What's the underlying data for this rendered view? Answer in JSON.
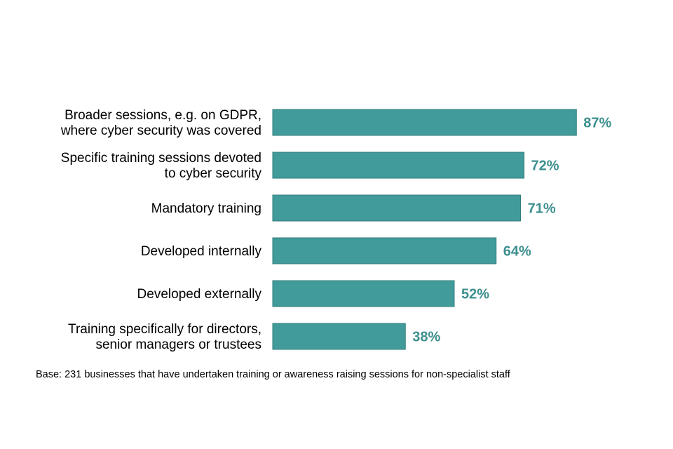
{
  "chart_data": {
    "type": "bar",
    "orientation": "horizontal",
    "categories": [
      [
        "Broader sessions, e.g. on GDPR,",
        "where cyber security was covered"
      ],
      [
        "Specific training sessions devoted",
        "to cyber security"
      ],
      [
        "Mandatory training"
      ],
      [
        "Developed internally"
      ],
      [
        "Developed externally"
      ],
      [
        "Training specifically for directors,",
        "senior managers or trustees"
      ]
    ],
    "values": [
      87,
      72,
      71,
      64,
      52,
      38
    ],
    "value_labels": [
      "87%",
      "72%",
      "71%",
      "64%",
      "52%",
      "38%"
    ],
    "xlim": [
      0,
      100
    ],
    "grid": false,
    "legend": "none",
    "bar_color": "#419b9a",
    "bar_edge_color": "#2f7c7b",
    "label_color": "#3d8f8e"
  },
  "footnote": "Base: 231 businesses that have undertaken training or awareness raising sessions for non-specialist staff"
}
